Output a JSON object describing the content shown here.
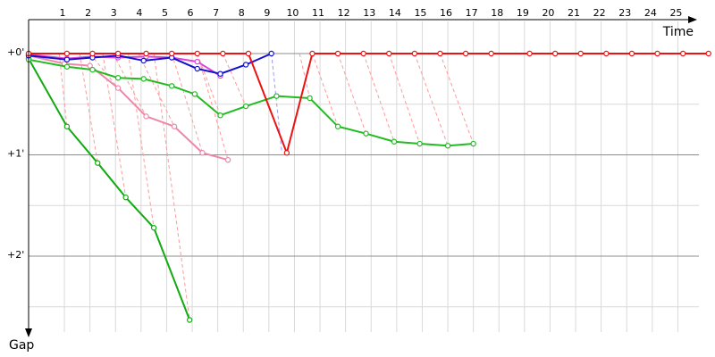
{
  "chart_data": {
    "type": "line",
    "x_axis": {
      "label": "Time",
      "ticks": [
        "1",
        "2",
        "3",
        "4",
        "5",
        "6",
        "7",
        "8",
        "9",
        "10",
        "11",
        "12",
        "13",
        "14",
        "15",
        "16",
        "17",
        "18",
        "19",
        "20",
        "21",
        "22",
        "23",
        "24",
        "25"
      ],
      "range": [
        0,
        26
      ]
    },
    "y_axis": {
      "label": "Gap",
      "ticks": [
        {
          "label": "+0'",
          "value": 0
        },
        {
          "label": "+1'",
          "value": 1
        },
        {
          "label": "+2'",
          "value": 2
        }
      ],
      "range": [
        0,
        2.8
      ]
    },
    "grid": true,
    "series": [
      {
        "color": "#11aa11",
        "points": [
          [
            0,
            0.05
          ],
          [
            1.5,
            0.72
          ],
          [
            2.7,
            1.08
          ],
          [
            3.8,
            1.42
          ],
          [
            4.9,
            1.72
          ],
          [
            6.3,
            2.63
          ]
        ]
      },
      {
        "color": "#ee88aa",
        "points": [
          [
            0,
            0.02
          ],
          [
            1.4,
            0.1
          ],
          [
            2.4,
            0.12
          ],
          [
            3.5,
            0.34
          ],
          [
            4.6,
            0.62
          ],
          [
            5.7,
            0.72
          ],
          [
            6.8,
            0.98
          ],
          [
            7.8,
            1.05
          ]
        ]
      },
      {
        "color": "#22bb22",
        "points": [
          [
            0,
            0.06
          ],
          [
            1.5,
            0.13
          ],
          [
            2.5,
            0.16
          ],
          [
            3.5,
            0.24
          ],
          [
            4.5,
            0.25
          ],
          [
            5.6,
            0.32
          ],
          [
            6.5,
            0.4
          ],
          [
            7.5,
            0.61
          ],
          [
            8.5,
            0.52
          ],
          [
            9.7,
            0.42
          ],
          [
            11,
            0.44
          ],
          [
            12.1,
            0.72
          ],
          [
            13.2,
            0.79
          ],
          [
            14.3,
            0.87
          ],
          [
            15.3,
            0.89
          ],
          [
            16.4,
            0.91
          ],
          [
            17.4,
            0.89
          ]
        ]
      },
      {
        "color": "#dd44dd",
        "points": [
          [
            0,
            0.01
          ],
          [
            1.5,
            0.05
          ],
          [
            2.5,
            0.03
          ],
          [
            3.5,
            0.04
          ],
          [
            4.6,
            0.03
          ],
          [
            5.6,
            0.04
          ],
          [
            6.6,
            0.08
          ],
          [
            7.5,
            0.22
          ]
        ]
      },
      {
        "color": "#1111cc",
        "points": [
          [
            0,
            0.02
          ],
          [
            1.5,
            0.06
          ],
          [
            2.5,
            0.04
          ],
          [
            3.5,
            0.02
          ],
          [
            4.5,
            0.07
          ],
          [
            5.6,
            0.04
          ],
          [
            6.6,
            0.15
          ],
          [
            7.5,
            0.2
          ],
          [
            8.5,
            0.11
          ],
          [
            9.5,
            0.0
          ]
        ]
      },
      {
        "color": "#ee1111",
        "points": [
          [
            0,
            0
          ],
          [
            1.5,
            0
          ],
          [
            2.5,
            0
          ],
          [
            3.5,
            0
          ],
          [
            4.6,
            0
          ],
          [
            5.6,
            0
          ],
          [
            6.6,
            0
          ],
          [
            7.6,
            0
          ],
          [
            8.6,
            0
          ],
          [
            10.1,
            0.98
          ],
          [
            11.1,
            0
          ],
          [
            12.1,
            0
          ],
          [
            13.1,
            0
          ],
          [
            14.1,
            0
          ],
          [
            15.1,
            0
          ],
          [
            16.1,
            0
          ],
          [
            17.1,
            0
          ],
          [
            18.1,
            0
          ],
          [
            19.6,
            0
          ],
          [
            20.6,
            0
          ],
          [
            21.6,
            0
          ],
          [
            22.6,
            0
          ],
          [
            23.6,
            0
          ],
          [
            24.6,
            0
          ],
          [
            25.6,
            0
          ],
          [
            26.6,
            0
          ]
        ]
      }
    ],
    "guide_lines": [
      {
        "color": "#ff9999",
        "from": [
          1.2,
          0
        ],
        "to": [
          1.5,
          0.72
        ]
      },
      {
        "color": "#ff9999",
        "from": [
          2.0,
          0
        ],
        "to": [
          2.7,
          1.08
        ]
      },
      {
        "color": "#ff9999",
        "from": [
          2.9,
          0
        ],
        "to": [
          3.8,
          1.42
        ]
      },
      {
        "color": "#ff9999",
        "from": [
          3.9,
          0
        ],
        "to": [
          4.9,
          1.72
        ]
      },
      {
        "color": "#ff9999",
        "from": [
          4.9,
          0
        ],
        "to": [
          6.3,
          2.63
        ]
      },
      {
        "color": "#ff9999",
        "from": [
          2.4,
          0
        ],
        "to": [
          3.5,
          0.34
        ]
      },
      {
        "color": "#ff9999",
        "from": [
          3.3,
          0
        ],
        "to": [
          4.6,
          0.62
        ]
      },
      {
        "color": "#ff9999",
        "from": [
          4.3,
          0
        ],
        "to": [
          5.7,
          0.72
        ]
      },
      {
        "color": "#ff9999",
        "from": [
          5.6,
          0
        ],
        "to": [
          6.8,
          0.98
        ]
      },
      {
        "color": "#ff9999",
        "from": [
          6.6,
          0
        ],
        "to": [
          7.8,
          1.05
        ]
      },
      {
        "color": "#ff9999",
        "from": [
          6.6,
          0
        ],
        "to": [
          7.5,
          0.61
        ]
      },
      {
        "color": "#ff9999",
        "from": [
          7.6,
          0
        ],
        "to": [
          8.5,
          0.52
        ]
      },
      {
        "color": "#ff9999",
        "from": [
          11.1,
          0
        ],
        "to": [
          12.1,
          0.72
        ]
      },
      {
        "color": "#ff9999",
        "from": [
          12.1,
          0
        ],
        "to": [
          13.2,
          0.79
        ]
      },
      {
        "color": "#ff9999",
        "from": [
          13.1,
          0
        ],
        "to": [
          14.3,
          0.87
        ]
      },
      {
        "color": "#ff9999",
        "from": [
          14.1,
          0
        ],
        "to": [
          15.3,
          0.89
        ]
      },
      {
        "color": "#ff9999",
        "from": [
          15.1,
          0
        ],
        "to": [
          16.4,
          0.91
        ]
      },
      {
        "color": "#ff9999",
        "from": [
          16.1,
          0
        ],
        "to": [
          17.4,
          0.89
        ]
      },
      {
        "color": "#ff9999",
        "from": [
          10.6,
          0
        ],
        "to": [
          11.0,
          0.44
        ]
      },
      {
        "color": "#ff9999",
        "from": [
          26.3,
          0.0
        ],
        "to": [
          26.6,
          0
        ]
      },
      {
        "color": "#9999ff",
        "from": [
          9.5,
          0
        ],
        "to": [
          9.9,
          0.96
        ]
      }
    ]
  }
}
